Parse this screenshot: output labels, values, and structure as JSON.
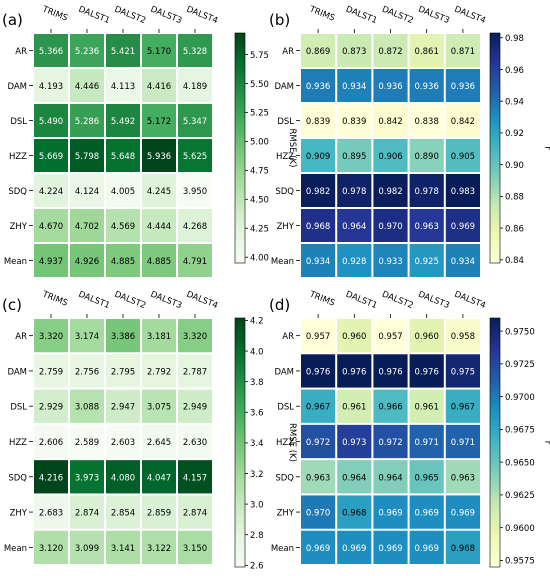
{
  "chart_data": [
    {
      "panel_label": "(a)",
      "type": "heatmap",
      "columns": [
        "TRIMS",
        "DALST1",
        "DALST2",
        "DALST3",
        "DALST4"
      ],
      "rows": [
        "AR",
        "DAM",
        "DSL",
        "HZZ",
        "SDQ",
        "ZHY",
        "Mean"
      ],
      "values": [
        [
          "5.366",
          "5.236",
          "5.421",
          "5.170",
          "5.328"
        ],
        [
          "4.193",
          "4.446",
          "4.113",
          "4.416",
          "4.189"
        ],
        [
          "5.490",
          "5.286",
          "5.492",
          "5.172",
          "5.347"
        ],
        [
          "5.669",
          "5.798",
          "5.648",
          "5.936",
          "5.625"
        ],
        [
          "4.224",
          "4.124",
          "4.005",
          "4.245",
          "3.950"
        ],
        [
          "4.670",
          "4.702",
          "4.569",
          "4.444",
          "4.268"
        ],
        [
          "4.937",
          "4.926",
          "4.885",
          "4.885",
          "4.791"
        ]
      ],
      "colormap": "greens",
      "vmin": 3.95,
      "vmax": 5.936,
      "colorbar_label": "RMSE (K)",
      "colorbar_ticks": [
        "4.00",
        "4.25",
        "4.50",
        "4.75",
        "5.00",
        "5.25",
        "5.50",
        "5.75"
      ]
    },
    {
      "panel_label": "(b)",
      "type": "heatmap",
      "columns": [
        "TRIMS",
        "DALST1",
        "DALST2",
        "DALST3",
        "DALST4"
      ],
      "rows": [
        "AR",
        "DAM",
        "DSL",
        "HZZ",
        "SDQ",
        "ZHY",
        "Mean"
      ],
      "values": [
        [
          "0.869",
          "0.873",
          "0.872",
          "0.861",
          "0.871"
        ],
        [
          "0.936",
          "0.934",
          "0.936",
          "0.936",
          "0.936"
        ],
        [
          "0.839",
          "0.839",
          "0.842",
          "0.838",
          "0.842"
        ],
        [
          "0.909",
          "0.895",
          "0.906",
          "0.890",
          "0.905"
        ],
        [
          "0.982",
          "0.978",
          "0.982",
          "0.978",
          "0.983"
        ],
        [
          "0.968",
          "0.964",
          "0.970",
          "0.963",
          "0.969"
        ],
        [
          "0.934",
          "0.928",
          "0.933",
          "0.925",
          "0.934"
        ]
      ],
      "colormap": "ylgnbu",
      "vmin": 0.838,
      "vmax": 0.983,
      "colorbar_label": "r",
      "colorbar_ticks": [
        "0.84",
        "0.86",
        "0.88",
        "0.90",
        "0.92",
        "0.94",
        "0.96",
        "0.98"
      ]
    },
    {
      "panel_label": "(c)",
      "type": "heatmap",
      "columns": [
        "TRIMS",
        "DALST1",
        "DALST2",
        "DALST3",
        "DALST4"
      ],
      "rows": [
        "AR",
        "DAM",
        "DSL",
        "HZZ",
        "SDQ",
        "ZHY",
        "Mean"
      ],
      "values": [
        [
          "3.320",
          "3.174",
          "3.386",
          "3.181",
          "3.320"
        ],
        [
          "2.759",
          "2.756",
          "2.795",
          "2.792",
          "2.787"
        ],
        [
          "2.929",
          "3.088",
          "2.947",
          "3.075",
          "2.949"
        ],
        [
          "2.606",
          "2.589",
          "2.603",
          "2.645",
          "2.630"
        ],
        [
          "4.216",
          "3.973",
          "4.080",
          "4.047",
          "4.157"
        ],
        [
          "2.683",
          "2.874",
          "2.854",
          "2.859",
          "2.874"
        ],
        [
          "3.120",
          "3.099",
          "3.141",
          "3.122",
          "3.150"
        ]
      ],
      "colormap": "greens",
      "vmin": 2.589,
      "vmax": 4.216,
      "colorbar_label": "RMSE (K)",
      "colorbar_ticks": [
        "2.6",
        "2.8",
        "3.0",
        "3.2",
        "3.4",
        "3.6",
        "3.8",
        "4.0",
        "4.2"
      ]
    },
    {
      "panel_label": "(d)",
      "type": "heatmap",
      "columns": [
        "TRIMS",
        "DALST1",
        "DALST2",
        "DALST3",
        "DALST4"
      ],
      "rows": [
        "AR",
        "DAM",
        "DSL",
        "HZZ",
        "SDQ",
        "ZHY",
        "Mean"
      ],
      "values": [
        [
          "0.957",
          "0.960",
          "0.957",
          "0.960",
          "0.958"
        ],
        [
          "0.976",
          "0.976",
          "0.976",
          "0.976",
          "0.975"
        ],
        [
          "0.967",
          "0.961",
          "0.966",
          "0.961",
          "0.967"
        ],
        [
          "0.972",
          "0.973",
          "0.972",
          "0.971",
          "0.971"
        ],
        [
          "0.963",
          "0.964",
          "0.964",
          "0.965",
          "0.963"
        ],
        [
          "0.970",
          "0.968",
          "0.969",
          "0.969",
          "0.969"
        ],
        [
          "0.969",
          "0.969",
          "0.969",
          "0.969",
          "0.968"
        ]
      ],
      "colormap": "ylgnbu",
      "vmin": 0.957,
      "vmax": 0.976,
      "colorbar_label": "r",
      "colorbar_ticks": [
        "0.9575",
        "0.9600",
        "0.9625",
        "0.9650",
        "0.9675",
        "0.9700",
        "0.9725",
        "0.9750"
      ]
    }
  ]
}
